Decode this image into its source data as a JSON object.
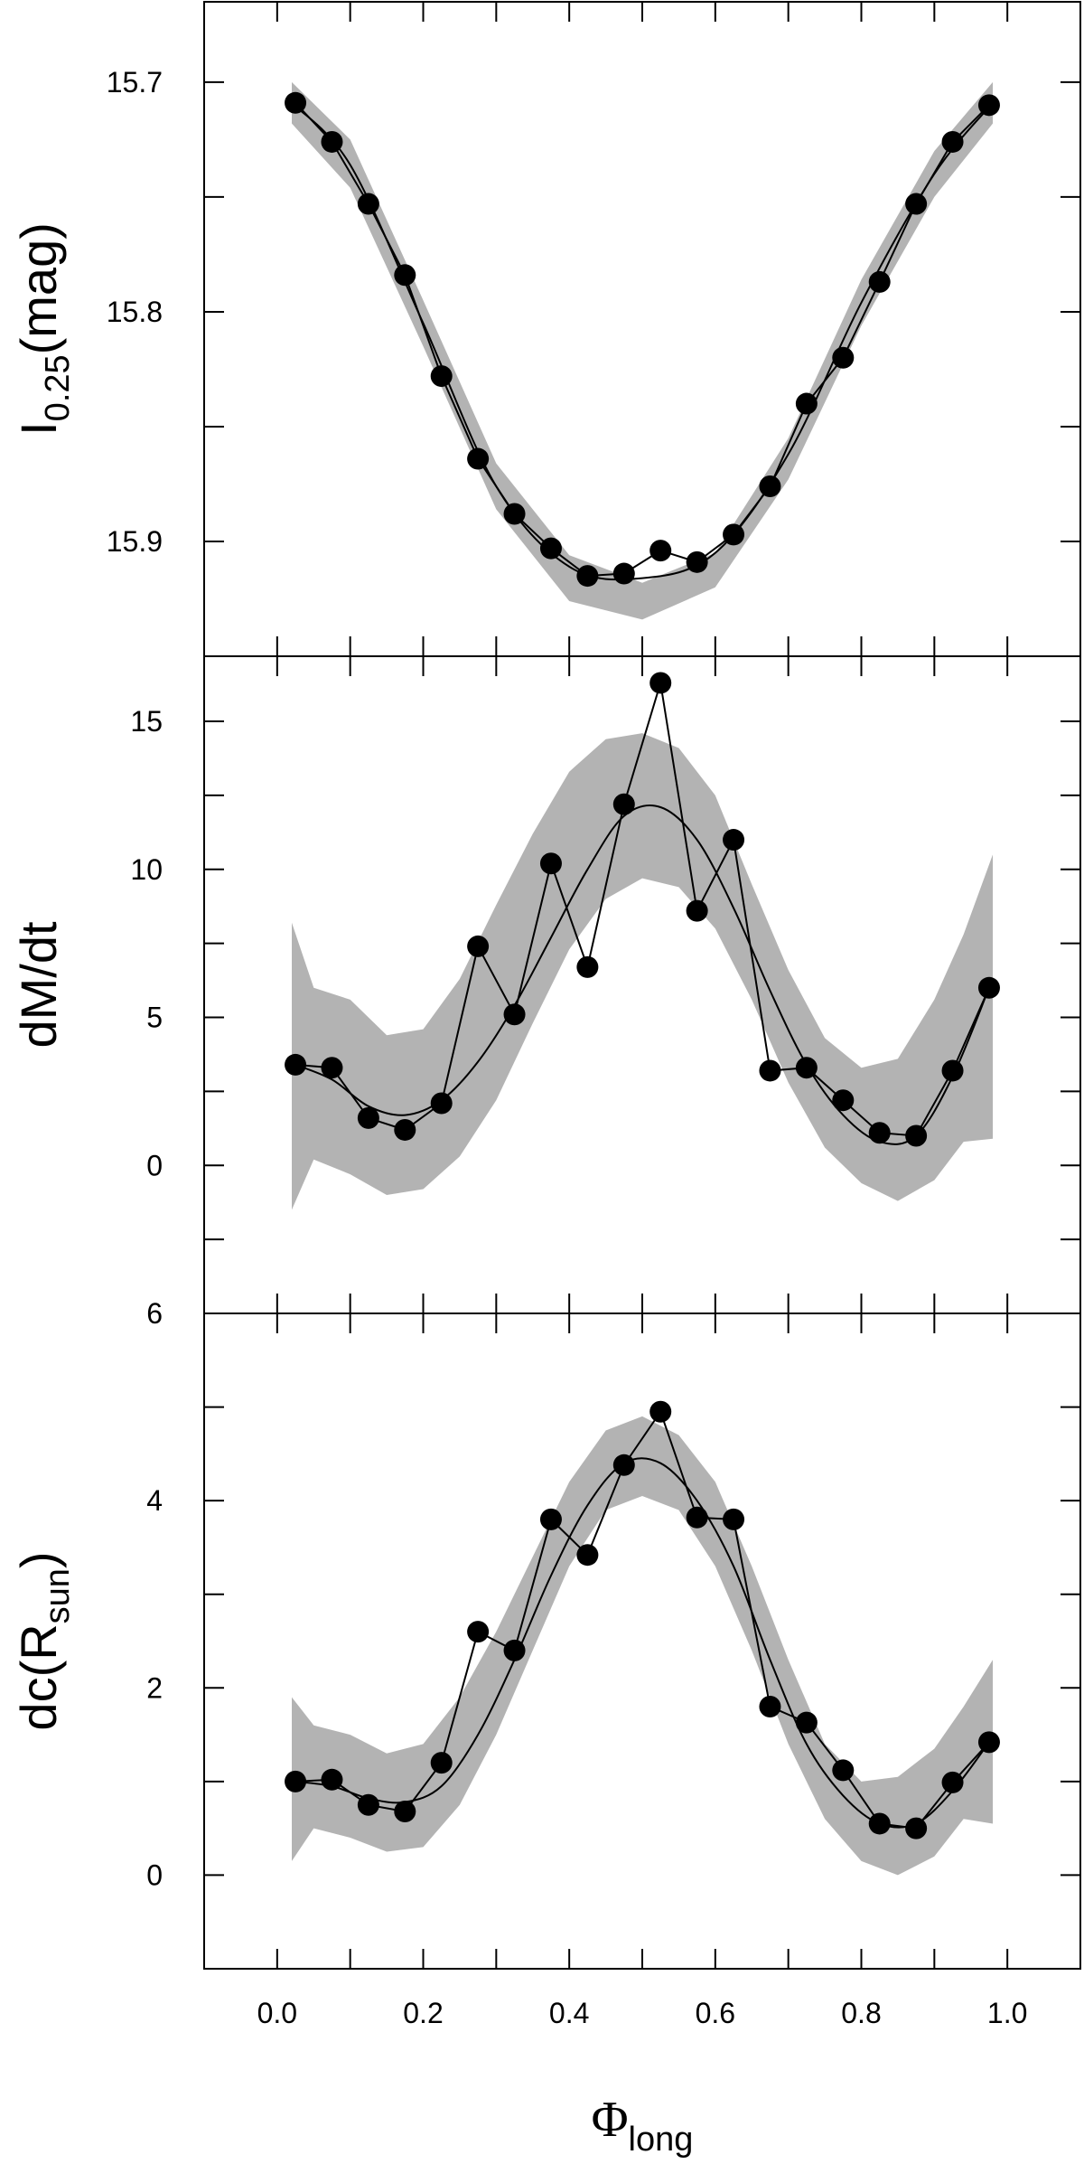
{
  "chart_data": {
    "type": "line",
    "x_axis": {
      "label_main": "Φ",
      "label_sub": "long",
      "range": [
        -0.1,
        1.1
      ],
      "ticks": [
        0.0,
        0.2,
        0.4,
        0.6,
        0.8,
        1.0
      ],
      "tick_labels": [
        "0.0",
        "0.2",
        "0.4",
        "0.6",
        "0.8",
        "1.0"
      ],
      "minor_step": 0.1
    },
    "grid": false,
    "panels": [
      {
        "id": "magnitude",
        "y_label_main": "I",
        "y_label_sub": "0.25",
        "y_label_suffix": "(mag)",
        "y_range": [
          15.665,
          15.95
        ],
        "y_inverted": true,
        "y_ticks": [
          15.7,
          15.8,
          15.9
        ],
        "y_tick_labels": [
          "15.7",
          "15.8",
          "15.9"
        ],
        "y_minor_step": 0.05,
        "series": [
          {
            "kind": "points",
            "x": [
              0.025,
              0.075,
              0.125,
              0.175,
              0.225,
              0.275,
              0.325,
              0.375,
              0.425,
              0.475,
              0.525,
              0.575,
              0.625,
              0.675,
              0.725,
              0.775,
              0.825,
              0.875,
              0.925,
              0.975
            ],
            "y": [
              15.709,
              15.726,
              15.753,
              15.784,
              15.828,
              15.864,
              15.888,
              15.903,
              15.915,
              15.914,
              15.904,
              15.909,
              15.897,
              15.876,
              15.84,
              15.82,
              15.787,
              15.753,
              15.726,
              15.71
            ]
          },
          {
            "kind": "band",
            "x": [
              0.02,
              0.1,
              0.2,
              0.3,
              0.4,
              0.5,
              0.6,
              0.7,
              0.8,
              0.9,
              0.98
            ],
            "lower": [
              15.7,
              15.725,
              15.795,
              15.866,
              15.906,
              15.918,
              15.905,
              15.855,
              15.786,
              15.73,
              15.7
            ],
            "upper": [
              15.718,
              15.746,
              15.815,
              15.886,
              15.926,
              15.934,
              15.92,
              15.873,
              15.806,
              15.75,
              15.718
            ]
          },
          {
            "kind": "fit",
            "x": [
              0.02,
              0.1,
              0.2,
              0.3,
              0.4,
              0.5,
              0.6,
              0.7,
              0.8,
              0.9,
              0.98
            ],
            "y": [
              15.709,
              15.736,
              15.805,
              15.876,
              15.911,
              15.916,
              15.905,
              15.862,
              15.796,
              15.74,
              15.709
            ]
          }
        ]
      },
      {
        "id": "mass-rate",
        "y_label_main": "dM/dt",
        "y_label_sub": "",
        "y_label_suffix": "",
        "y_range": [
          -5,
          17.2
        ],
        "y_inverted": false,
        "y_ticks": [
          0,
          5,
          10,
          15
        ],
        "y_tick_labels": [
          "0",
          "5",
          "10",
          "15"
        ],
        "y_minor_step": 2.5,
        "series": [
          {
            "kind": "points",
            "x": [
              0.025,
              0.075,
              0.125,
              0.175,
              0.225,
              0.275,
              0.325,
              0.375,
              0.425,
              0.475,
              0.525,
              0.575,
              0.625,
              0.675,
              0.725,
              0.775,
              0.825,
              0.875,
              0.925,
              0.975
            ],
            "y": [
              3.4,
              3.3,
              1.6,
              1.2,
              2.1,
              7.4,
              5.1,
              10.2,
              6.7,
              12.2,
              16.3,
              8.6,
              11.0,
              3.2,
              3.3,
              2.2,
              1.1,
              1.0,
              3.2,
              6.0
            ]
          },
          {
            "kind": "band",
            "x": [
              0.02,
              0.05,
              0.1,
              0.15,
              0.2,
              0.25,
              0.3,
              0.35,
              0.4,
              0.45,
              0.5,
              0.55,
              0.6,
              0.65,
              0.7,
              0.75,
              0.8,
              0.85,
              0.9,
              0.94,
              0.98
            ],
            "lower": [
              -1.5,
              0.2,
              -0.3,
              -1.0,
              -0.8,
              0.3,
              2.2,
              4.8,
              7.3,
              9.0,
              9.7,
              9.4,
              8.0,
              5.6,
              2.8,
              0.6,
              -0.6,
              -1.2,
              -0.5,
              0.8,
              0.9
            ],
            "upper": [
              8.2,
              6.0,
              5.6,
              4.4,
              4.6,
              6.3,
              8.8,
              11.2,
              13.3,
              14.4,
              14.6,
              14.1,
              12.5,
              9.5,
              6.6,
              4.3,
              3.3,
              3.6,
              5.6,
              7.8,
              10.5
            ]
          },
          {
            "kind": "fit",
            "x": [
              0.025,
              0.075,
              0.125,
              0.175,
              0.225,
              0.275,
              0.325,
              0.375,
              0.425,
              0.475,
              0.525,
              0.575,
              0.625,
              0.675,
              0.725,
              0.775,
              0.825,
              0.875,
              0.925,
              0.975
            ],
            "y": [
              3.4,
              2.9,
              2.0,
              1.7,
              2.2,
              3.5,
              5.4,
              7.7,
              10.0,
              11.8,
              12.1,
              11.0,
              8.7,
              5.9,
              3.4,
              1.7,
              0.8,
              1.0,
              3.0,
              6.0
            ]
          }
        ]
      },
      {
        "id": "dc",
        "y_label_main": "dc(R",
        "y_label_sub": "sun",
        "y_label_suffix": ")",
        "y_range": [
          -1.0,
          6.0
        ],
        "y_inverted": false,
        "y_ticks": [
          0,
          2,
          4,
          6
        ],
        "y_tick_labels": [
          "0",
          "2",
          "4",
          "6"
        ],
        "y_minor_step": 1,
        "series": [
          {
            "kind": "points",
            "x": [
              0.025,
              0.075,
              0.125,
              0.175,
              0.225,
              0.275,
              0.325,
              0.375,
              0.425,
              0.475,
              0.525,
              0.575,
              0.625,
              0.675,
              0.725,
              0.775,
              0.825,
              0.875,
              0.925,
              0.975
            ],
            "y": [
              1.0,
              1.02,
              0.75,
              0.68,
              1.2,
              2.6,
              2.4,
              3.8,
              3.42,
              4.38,
              4.95,
              3.82,
              3.8,
              1.8,
              1.63,
              1.12,
              0.55,
              0.5,
              0.99,
              1.42
            ]
          },
          {
            "kind": "band",
            "x": [
              0.02,
              0.05,
              0.1,
              0.15,
              0.2,
              0.25,
              0.3,
              0.35,
              0.4,
              0.45,
              0.5,
              0.55,
              0.6,
              0.65,
              0.7,
              0.75,
              0.8,
              0.85,
              0.9,
              0.94,
              0.98
            ],
            "lower": [
              0.15,
              0.5,
              0.4,
              0.25,
              0.3,
              0.75,
              1.5,
              2.4,
              3.3,
              3.9,
              4.05,
              3.9,
              3.3,
              2.4,
              1.4,
              0.6,
              0.15,
              0.0,
              0.2,
              0.6,
              0.55
            ],
            "upper": [
              1.9,
              1.6,
              1.5,
              1.3,
              1.4,
              1.9,
              2.6,
              3.4,
              4.2,
              4.75,
              4.9,
              4.7,
              4.2,
              3.3,
              2.3,
              1.4,
              1.0,
              1.05,
              1.35,
              1.8,
              2.3
            ]
          },
          {
            "kind": "fit",
            "x": [
              0.025,
              0.075,
              0.125,
              0.175,
              0.225,
              0.275,
              0.325,
              0.375,
              0.425,
              0.475,
              0.525,
              0.575,
              0.625,
              0.675,
              0.725,
              0.775,
              0.825,
              0.875,
              0.925,
              0.975
            ],
            "y": [
              1.0,
              0.95,
              0.82,
              0.78,
              0.95,
              1.5,
              2.3,
              3.2,
              3.95,
              4.4,
              4.4,
              4.0,
              3.3,
              2.3,
              1.4,
              0.85,
              0.55,
              0.55,
              0.9,
              1.42
            ]
          }
        ]
      }
    ]
  }
}
